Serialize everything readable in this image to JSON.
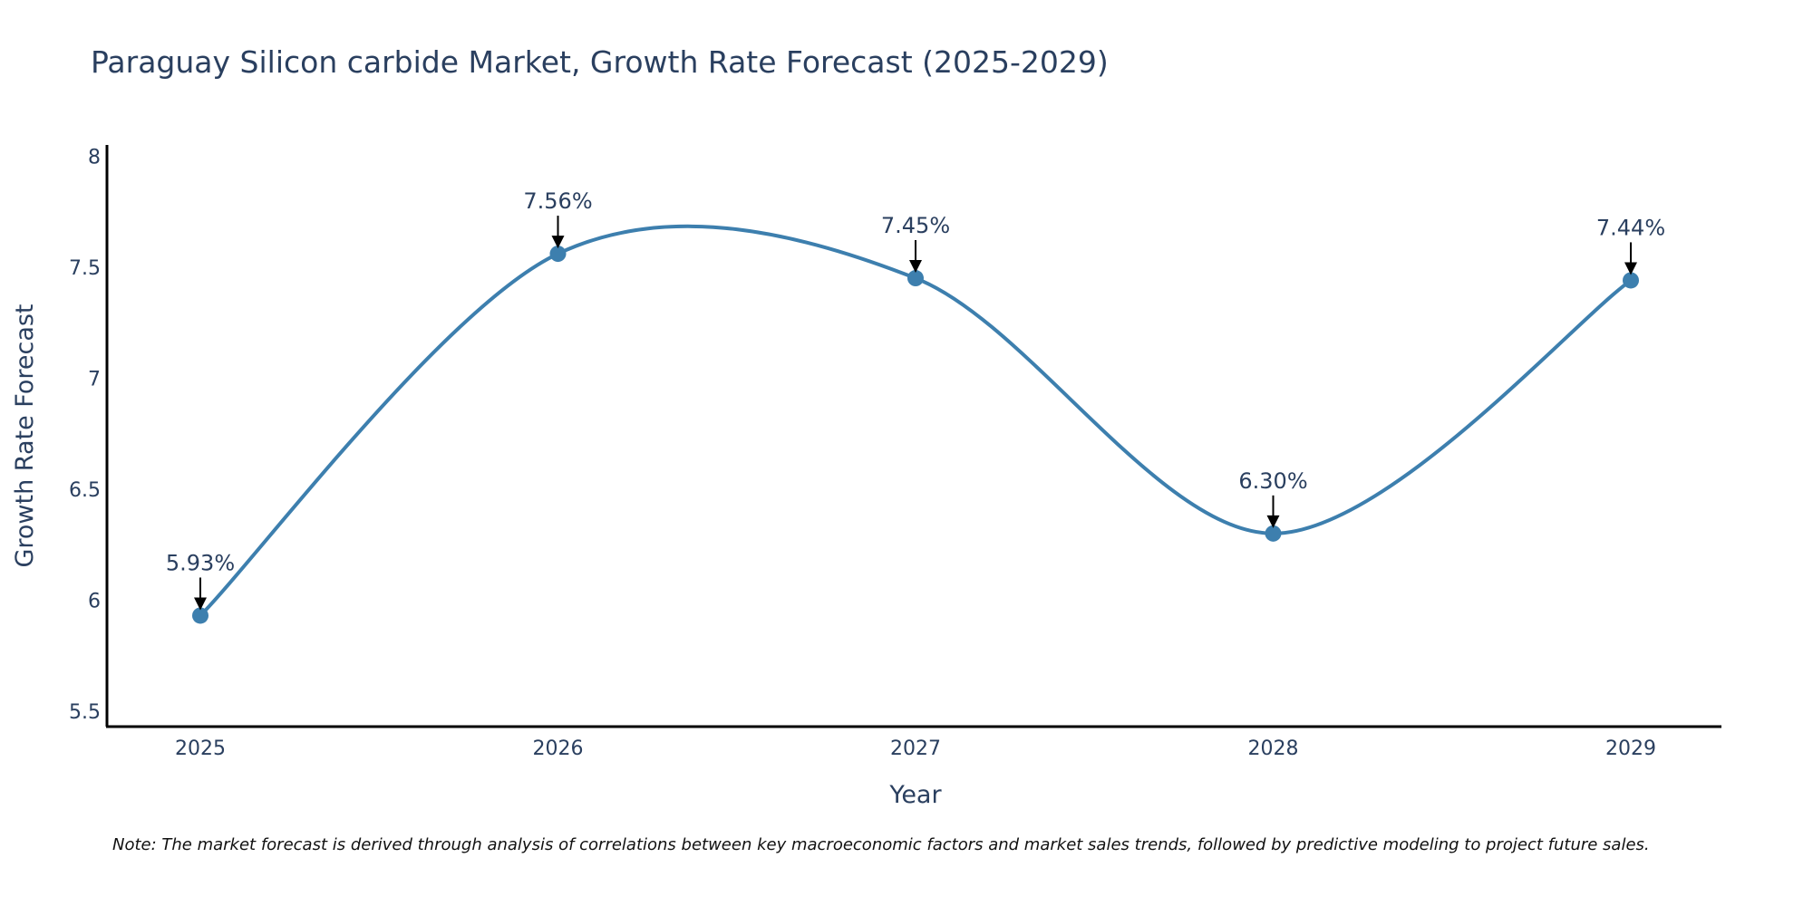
{
  "chart_data": {
    "type": "line",
    "title": "Paraguay Silicon carbide Market, Growth Rate Forecast (2025-2029)",
    "xlabel": "Year",
    "ylabel": "Growth Rate Forecast",
    "categories": [
      "2025",
      "2026",
      "2027",
      "2028",
      "2029"
    ],
    "series": [
      {
        "name": "Growth Rate Forecast",
        "values": [
          5.93,
          7.56,
          7.45,
          6.3,
          7.44
        ]
      }
    ],
    "data_labels": [
      "5.93%",
      "7.56%",
      "7.45%",
      "6.30%",
      "7.44%"
    ],
    "ylim": [
      5.43,
      8.05
    ],
    "yticks": [
      5.5,
      6,
      6.5,
      7,
      7.5,
      8
    ],
    "ytick_labels": [
      "5.5",
      "6",
      "6.5",
      "7",
      "7.5",
      "8"
    ],
    "grid": false,
    "line_color": "#3d7fae",
    "marker_color": "#3d7fae",
    "note": "Note: The market forecast is derived through analysis of correlations between key macroeconomic factors and market sales trends, followed by predictive modeling to project future sales."
  }
}
